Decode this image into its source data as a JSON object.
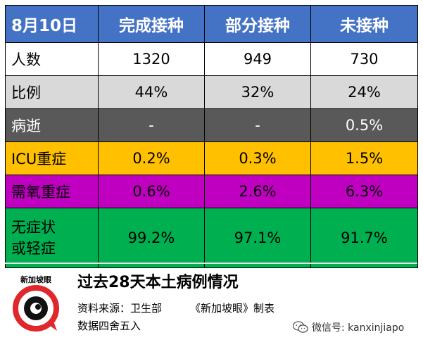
{
  "table": {
    "headers": [
      "8月10日",
      "完成接种",
      "部分接种",
      "未接种"
    ],
    "rows": [
      {
        "label": "人数",
        "values": [
          "1320",
          "949",
          "730"
        ]
      },
      {
        "label": "比例",
        "values": [
          "44%",
          "32%",
          "24%"
        ]
      },
      {
        "label": "病逝",
        "values": [
          "-",
          "-",
          "0.5%"
        ]
      },
      {
        "label": "ICU重症",
        "values": [
          "0.2%",
          "0.3%",
          "1.5%"
        ]
      },
      {
        "label": "需氧重症",
        "values": [
          "0.6%",
          "2.6%",
          "6.3%"
        ]
      },
      {
        "label_line1": "无症状",
        "label_line2": "或轻症",
        "values": [
          "99.2%",
          "97.1%",
          "91.7%"
        ]
      }
    ]
  },
  "footer": {
    "title": "过去28天本土病例情况",
    "source_label": "资料来源：卫生部",
    "maker": "《新加坡眼》制表",
    "rounding_note": "数据四舍五入",
    "logo_text": "新加坡眼",
    "wechat": "微信号: kanxinjiapo"
  },
  "colors": {
    "header_bg": "#4472c4",
    "ratio_bg": "#d9d9d9",
    "death_bg": "#595959",
    "icu_bg": "#ffc000",
    "severe_bg": "#c000c0",
    "mild_bg": "#00b050",
    "logo_red": "#e0282c"
  }
}
